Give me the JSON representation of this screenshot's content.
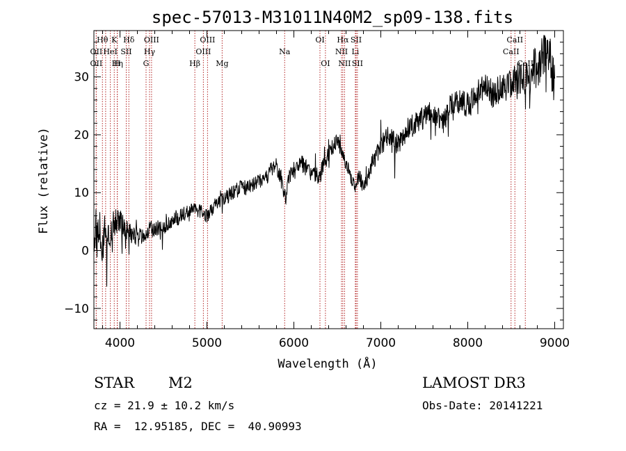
{
  "chart_data": {
    "type": "line",
    "title": "spec-57013-M31011N40M2_sp09-138.fits",
    "xlabel": "Wavelength (Å)",
    "ylabel": "Flux (relative)",
    "xlim": [
      3700,
      9100
    ],
    "ylim": [
      -13.5,
      38
    ],
    "xticks": [
      4000,
      5000,
      6000,
      7000,
      8000,
      9000
    ],
    "yticks": [
      -10,
      0,
      10,
      20,
      30
    ],
    "series": [
      {
        "name": "spectrum",
        "x": [
          3700,
          3750,
          3800,
          3850,
          3900,
          3950,
          4000,
          4100,
          4200,
          4300,
          4400,
          4500,
          4600,
          4700,
          4800,
          4900,
          5000,
          5100,
          5200,
          5300,
          5400,
          5500,
          5600,
          5700,
          5800,
          5850,
          5900,
          5950,
          6000,
          6100,
          6200,
          6300,
          6400,
          6500,
          6550,
          6600,
          6650,
          6700,
          6750,
          6800,
          6900,
          7000,
          7100,
          7200,
          7300,
          7400,
          7500,
          7600,
          7700,
          7800,
          7900,
          8000,
          8100,
          8200,
          8300,
          8400,
          8500,
          8600,
          8700,
          8750,
          8800,
          8850,
          8900,
          8950,
          9000
        ],
        "y": [
          4,
          3,
          2,
          3,
          4,
          5,
          5,
          3,
          2,
          3,
          4,
          4,
          5,
          6,
          7,
          7,
          6,
          8,
          9,
          10,
          11,
          11,
          12,
          13,
          15,
          12,
          9,
          13,
          14,
          15,
          13,
          13,
          17,
          19,
          17,
          15,
          13,
          11,
          13,
          11,
          15,
          18,
          20,
          18,
          21,
          22,
          23,
          24,
          22,
          25,
          26,
          25,
          27,
          28,
          27,
          28,
          29,
          30,
          29,
          32,
          31,
          33,
          34,
          33,
          28
        ],
        "noise": [
          4.5,
          4.5,
          4.0,
          3.5,
          3.0,
          2.5,
          2.2,
          2.0,
          1.8,
          1.6,
          1.5,
          1.4,
          1.3,
          1.3,
          1.2,
          1.2,
          1.2,
          1.3,
          1.3,
          1.3,
          1.4,
          1.4,
          1.4,
          1.5,
          1.6,
          1.6,
          1.6,
          1.5,
          1.5,
          1.5,
          1.5,
          1.5,
          1.5,
          1.2,
          1.2,
          1.2,
          1.2,
          1.3,
          1.3,
          1.4,
          1.6,
          1.8,
          1.9,
          2.0,
          2.0,
          2.0,
          2.0,
          2.2,
          2.3,
          2.3,
          2.3,
          2.4,
          2.5,
          2.5,
          2.6,
          2.7,
          2.8,
          3.0,
          3.2,
          3.3,
          3.5,
          3.7,
          3.8,
          4.0,
          4.0
        ]
      }
    ],
    "lines": [
      {
        "wave": 3798,
        "label": "Hθ",
        "row": 0
      },
      {
        "wave": 3727,
        "label": "OII",
        "row": 1
      },
      {
        "wave": 3727,
        "label": "OII",
        "row": 2
      },
      {
        "wave": 3835,
        "label": "",
        "row": -1
      },
      {
        "wave": 3889,
        "label": "HeI",
        "row": 1
      },
      {
        "wave": 3934,
        "label": "K",
        "row": 0
      },
      {
        "wave": 3970,
        "label": "Hη",
        "row": 2
      },
      {
        "wave": 3968,
        "label": "H",
        "row": 2
      },
      {
        "wave": 4072,
        "label": "SII",
        "row": 1
      },
      {
        "wave": 4102,
        "label": "Hδ",
        "row": 0
      },
      {
        "wave": 4300,
        "label": "G",
        "row": 2
      },
      {
        "wave": 4340,
        "label": "Hγ",
        "row": 1
      },
      {
        "wave": 4363,
        "label": "OIII",
        "row": 0
      },
      {
        "wave": 4861,
        "label": "Hβ",
        "row": 2
      },
      {
        "wave": 4959,
        "label": "OIII",
        "row": 1
      },
      {
        "wave": 5007,
        "label": "OIII",
        "row": 0
      },
      {
        "wave": 5175,
        "label": "Mg",
        "row": 2
      },
      {
        "wave": 5894,
        "label": "Na",
        "row": 1
      },
      {
        "wave": 6300,
        "label": "OI",
        "row": 0
      },
      {
        "wave": 6363,
        "label": "OI",
        "row": 2
      },
      {
        "wave": 6548,
        "label": "NII",
        "row": 1
      },
      {
        "wave": 6563,
        "label": "Hα",
        "row": 0
      },
      {
        "wave": 6583,
        "label": "NII",
        "row": 2
      },
      {
        "wave": 6707,
        "label": "Li",
        "row": 1
      },
      {
        "wave": 6716,
        "label": "SII",
        "row": 0
      },
      {
        "wave": 6731,
        "label": "SII",
        "row": 2
      },
      {
        "wave": 8498,
        "label": "CaII",
        "row": 1
      },
      {
        "wave": 8542,
        "label": "CaII",
        "row": 0
      },
      {
        "wave": 8662,
        "label": "CaII",
        "row": 2
      }
    ]
  },
  "info": {
    "object_type": "STAR",
    "subclass": "M2",
    "survey": "LAMOST DR3",
    "cz": "cz = 21.9 ± 10.2 km/s",
    "obs_date": "Obs-Date: 20141221",
    "coords": "RA =  12.95185, DEC =  40.90993"
  },
  "colors": {
    "axes": "#000000",
    "spectrum": "#000000",
    "lines": "#b22222"
  }
}
